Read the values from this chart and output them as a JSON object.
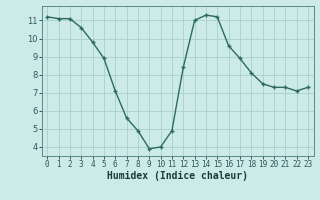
{
  "x": [
    0,
    1,
    2,
    3,
    4,
    5,
    6,
    7,
    8,
    9,
    10,
    11,
    12,
    13,
    14,
    15,
    16,
    17,
    18,
    19,
    20,
    21,
    22,
    23
  ],
  "y": [
    11.2,
    11.1,
    11.1,
    10.6,
    9.8,
    8.9,
    7.1,
    5.6,
    4.9,
    3.9,
    4.0,
    4.9,
    8.4,
    11.0,
    11.3,
    11.2,
    9.6,
    8.9,
    8.1,
    7.5,
    7.3,
    7.3,
    7.1,
    7.3
  ],
  "xlim": [
    -0.5,
    23.5
  ],
  "ylim": [
    3.5,
    11.8
  ],
  "yticks": [
    4,
    5,
    6,
    7,
    8,
    9,
    10,
    11
  ],
  "xticks": [
    0,
    1,
    2,
    3,
    4,
    5,
    6,
    7,
    8,
    9,
    10,
    11,
    12,
    13,
    14,
    15,
    16,
    17,
    18,
    19,
    20,
    21,
    22,
    23
  ],
  "xlabel": "Humidex (Indice chaleur)",
  "line_color": "#2d6b5e",
  "marker": "+",
  "bg_color": "#cceae7",
  "grid_color": "#aacfcc",
  "spine_color": "#5a8a87"
}
